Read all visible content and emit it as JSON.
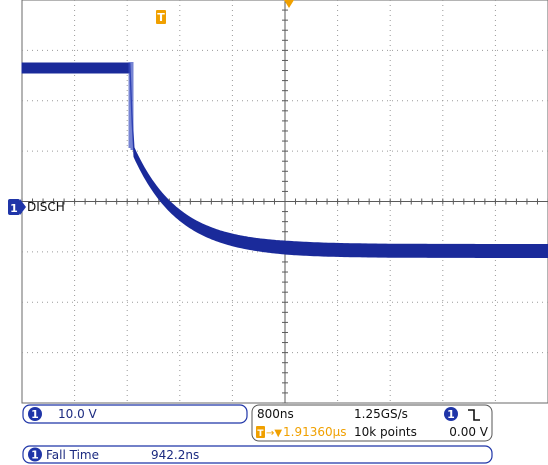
{
  "colors": {
    "trace": "#1a2a9a",
    "trigger": "#f0a000",
    "channel_badge": "#1f35a8",
    "grid": "#8a8a8a",
    "background": "#ffffff"
  },
  "trigger_marker": {
    "label": "T",
    "icon": "trigger-position-icon"
  },
  "channel": {
    "number": "1",
    "label": "DISCH",
    "scale": "10.0 V"
  },
  "acquisition": {
    "time_per_div": "800ns",
    "sample_rate": "1.25GS/s",
    "trigger_delay_prefix": "T→▼",
    "trigger_delay": "1.91360µs",
    "record_length": "10k points",
    "trigger_channel": "1",
    "trigger_slope": "falling-edge-icon",
    "trigger_slope_glyph": "⅄",
    "trigger_level": "0.00 V"
  },
  "measurement": {
    "channel": "1",
    "name": "Fall Time",
    "value": "942.2ns"
  }
}
